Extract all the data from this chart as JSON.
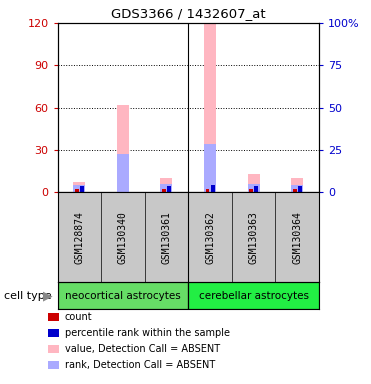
{
  "title": "GDS3366 / 1432607_at",
  "samples": [
    "GSM128874",
    "GSM130340",
    "GSM130361",
    "GSM130362",
    "GSM130363",
    "GSM130364"
  ],
  "groups": [
    {
      "name": "neocortical astrocytes",
      "indices": [
        0,
        1,
        2
      ],
      "color": "#66DD66"
    },
    {
      "name": "cerebellar astrocytes",
      "indices": [
        3,
        4,
        5
      ],
      "color": "#22EE44"
    }
  ],
  "ylim_left": [
    0,
    120
  ],
  "ylim_right": [
    0,
    100
  ],
  "yticks_left": [
    0,
    30,
    60,
    90,
    120
  ],
  "yticks_right": [
    0,
    25,
    50,
    75,
    100
  ],
  "yticklabels_right": [
    "0",
    "25",
    "50",
    "75",
    "100%"
  ],
  "value_absent": [
    7.0,
    62.0,
    10.0,
    120.0,
    13.0,
    10.0
  ],
  "rank_absent": [
    5.0,
    27.0,
    6.0,
    34.0,
    6.0,
    5.0
  ],
  "count_present": [
    2.0,
    0.0,
    2.0,
    2.0,
    2.0,
    2.0
  ],
  "percentile_present": [
    4.0,
    0.0,
    4.0,
    5.0,
    4.0,
    4.0
  ],
  "color_value_absent": "#FFB6C1",
  "color_rank_absent": "#AAAAFF",
  "color_count": "#CC0000",
  "color_percentile": "#0000CC",
  "left_axis_color": "#CC0000",
  "right_axis_color": "#0000CC",
  "label_bg": "#C8C8C8",
  "legend_items": [
    {
      "label": "count",
      "color": "#CC0000"
    },
    {
      "label": "percentile rank within the sample",
      "color": "#0000CC"
    },
    {
      "label": "value, Detection Call = ABSENT",
      "color": "#FFB6C1"
    },
    {
      "label": "rank, Detection Call = ABSENT",
      "color": "#AAAAFF"
    }
  ]
}
